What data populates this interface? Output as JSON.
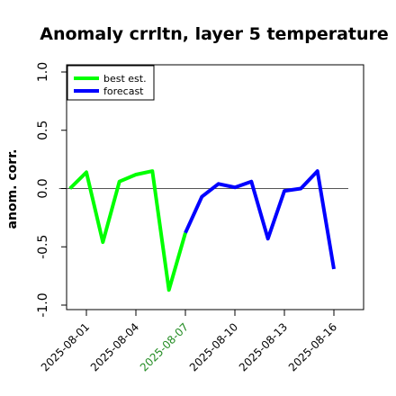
{
  "chart_data": {
    "type": "line",
    "title": "Anomaly crrltn, layer 5 temperature",
    "xlabel": "",
    "ylabel": "anom. corr.",
    "ylim": [
      -1.0,
      1.0
    ],
    "yticks": [
      "-1.0",
      "-0.5",
      "0.0",
      "0.5",
      "1.0"
    ],
    "ytick_values": [
      -1.0,
      -0.5,
      0.0,
      0.5,
      1.0
    ],
    "x_tick_labels": [
      {
        "label": "2025-08-01",
        "day": 1,
        "color": "#000000"
      },
      {
        "label": "2025-08-04",
        "day": 4,
        "color": "#000000"
      },
      {
        "label": "2025-08-07",
        "day": 7,
        "color": "#228b22"
      },
      {
        "label": "2025-08-10",
        "day": 10,
        "color": "#000000"
      },
      {
        "label": "2025-08-13",
        "day": 13,
        "color": "#000000"
      },
      {
        "label": "2025-08-16",
        "day": 16,
        "color": "#000000"
      }
    ],
    "xlim_days": [
      -0.2,
      17.8
    ],
    "reference_line": 0.0,
    "series": [
      {
        "name": "best est.",
        "color": "#00ff00",
        "days": [
          0,
          1,
          2,
          3,
          4,
          5,
          6,
          7
        ],
        "values": [
          0.0,
          0.14,
          -0.46,
          0.06,
          0.12,
          0.15,
          -0.87,
          -0.38
        ]
      },
      {
        "name": "forecast",
        "color": "#0000ff",
        "days": [
          7,
          8,
          9,
          10,
          11,
          12,
          13,
          14,
          15,
          16
        ],
        "values": [
          -0.38,
          -0.07,
          0.04,
          0.01,
          0.06,
          -0.43,
          -0.02,
          0.0,
          0.15,
          -0.69
        ]
      }
    ],
    "legend_position": "top-left",
    "grid": false
  }
}
